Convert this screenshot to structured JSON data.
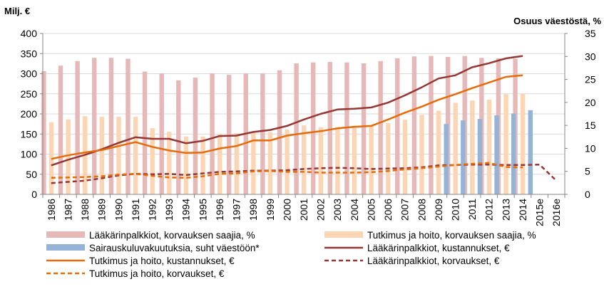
{
  "chart_data": {
    "type": "bar+line",
    "y_left_label": "Milj. €",
    "y_right_label": "Osuus väestöstä, %",
    "y_left_lim": [
      0,
      400
    ],
    "y_left_ticks": [
      0,
      50,
      100,
      150,
      200,
      250,
      300,
      350,
      400
    ],
    "y_right_lim": [
      0,
      35
    ],
    "y_right_ticks": [
      0,
      5,
      10,
      15,
      20,
      25,
      30,
      35
    ],
    "categories": [
      "1986",
      "1987",
      "1988",
      "1989",
      "1990",
      "1991",
      "1992",
      "1993",
      "1994",
      "1995",
      "1996",
      "1997",
      "1998",
      "1999",
      "2000",
      "2001",
      "2002",
      "2003",
      "2004",
      "2005",
      "2006",
      "2007",
      "2008",
      "2009",
      "2010",
      "2011",
      "2012",
      "2013",
      "2014",
      "2015e",
      "2016e"
    ],
    "bar_series": [
      {
        "name": "Lääkärinpalkkiot, korvauksen saajia, %",
        "color": "#e6b8b7",
        "axis": "right",
        "values": [
          26.8,
          28.0,
          29.0,
          29.7,
          29.7,
          29.5,
          26.7,
          26.3,
          24.8,
          25.4,
          26.3,
          26.0,
          26.3,
          26.3,
          27.0,
          28.5,
          28.7,
          28.8,
          28.7,
          28.5,
          29.0,
          29.6,
          30.0,
          30.1,
          29.9,
          30.1,
          29.7,
          29.6,
          29.5,
          null,
          null
        ]
      },
      {
        "name": "Tutkimus ja hoito, korvauksen saajia, %",
        "color": "#fcd5b4",
        "axis": "right",
        "values": [
          15.7,
          16.3,
          17.0,
          16.9,
          16.9,
          16.9,
          14.4,
          13.6,
          12.6,
          12.6,
          13.1,
          13.3,
          13.5,
          13.5,
          14.1,
          15.0,
          14.6,
          14.6,
          14.6,
          14.9,
          15.5,
          16.2,
          17.3,
          18.2,
          19.9,
          20.4,
          20.6,
          21.8,
          21.9,
          null,
          null
        ]
      },
      {
        "name": "Sairauskuluvakuutuksia, suht väestöön*",
        "color": "#95b3d7",
        "axis": "right",
        "values": [
          null,
          null,
          null,
          null,
          null,
          null,
          null,
          null,
          null,
          null,
          null,
          null,
          null,
          null,
          null,
          null,
          null,
          null,
          null,
          null,
          null,
          null,
          null,
          15.3,
          16.1,
          16.4,
          17.2,
          17.6,
          18.3,
          null,
          null
        ]
      }
    ],
    "line_series": [
      {
        "name": "Lääkärinpalkkiot, kustannukset, €",
        "color": "#953735",
        "style": "solid",
        "axis": "left",
        "values": [
          72,
          86,
          98,
          112,
          128,
          142,
          138,
          138,
          127,
          133,
          145,
          146,
          155,
          160,
          170,
          186,
          200,
          211,
          213,
          216,
          228,
          246,
          266,
          288,
          296,
          316,
          326,
          338,
          344,
          null,
          null
        ]
      },
      {
        "name": "Tutkimus ja hoito, kustannukset, €",
        "color": "#e46c0a",
        "style": "solid",
        "axis": "left",
        "values": [
          88,
          97,
          104,
          110,
          120,
          130,
          118,
          109,
          103,
          104,
          114,
          120,
          134,
          134,
          146,
          152,
          157,
          164,
          168,
          170,
          186,
          203,
          218,
          235,
          249,
          264,
          278,
          292,
          296,
          null,
          null
        ]
      },
      {
        "name": "Lääkärinpalkkiot, korvaukset, €",
        "color": "#953735",
        "style": "dashed",
        "axis": "left",
        "values": [
          28,
          31,
          34,
          40,
          47,
          51,
          50,
          51,
          48,
          52,
          56,
          57,
          59,
          59,
          60,
          63,
          65,
          66,
          65,
          63,
          64,
          65,
          67,
          72,
          73,
          74,
          74,
          73,
          73,
          74,
          34
        ]
      },
      {
        "name": "Tutkimus ja hoito, korvaukset, €",
        "color": "#e46c0a",
        "style": "dashed",
        "axis": "left",
        "values": [
          41,
          42,
          43,
          45,
          49,
          51,
          46,
          42,
          41,
          45,
          51,
          52,
          57,
          58,
          56,
          56,
          54,
          54,
          54,
          55,
          58,
          62,
          65,
          69,
          73,
          76,
          78,
          68,
          67,
          null,
          null
        ]
      }
    ],
    "legend": [
      "Lääkärinpalkkiot, korvauksen saajia, %",
      "Tutkimus ja hoito, korvauksen saajia, %",
      "Sairauskuluvakuutuksia, suht väestöön*",
      "Lääkärinpalkkiot, kustannukset, €",
      "Tutkimus ja hoito, kustannukset, €",
      "Lääkärinpalkkiot, korvaukset, €",
      "Tutkimus ja hoito, korvaukset, €"
    ],
    "legend_placement": "bottom",
    "grid": true
  }
}
